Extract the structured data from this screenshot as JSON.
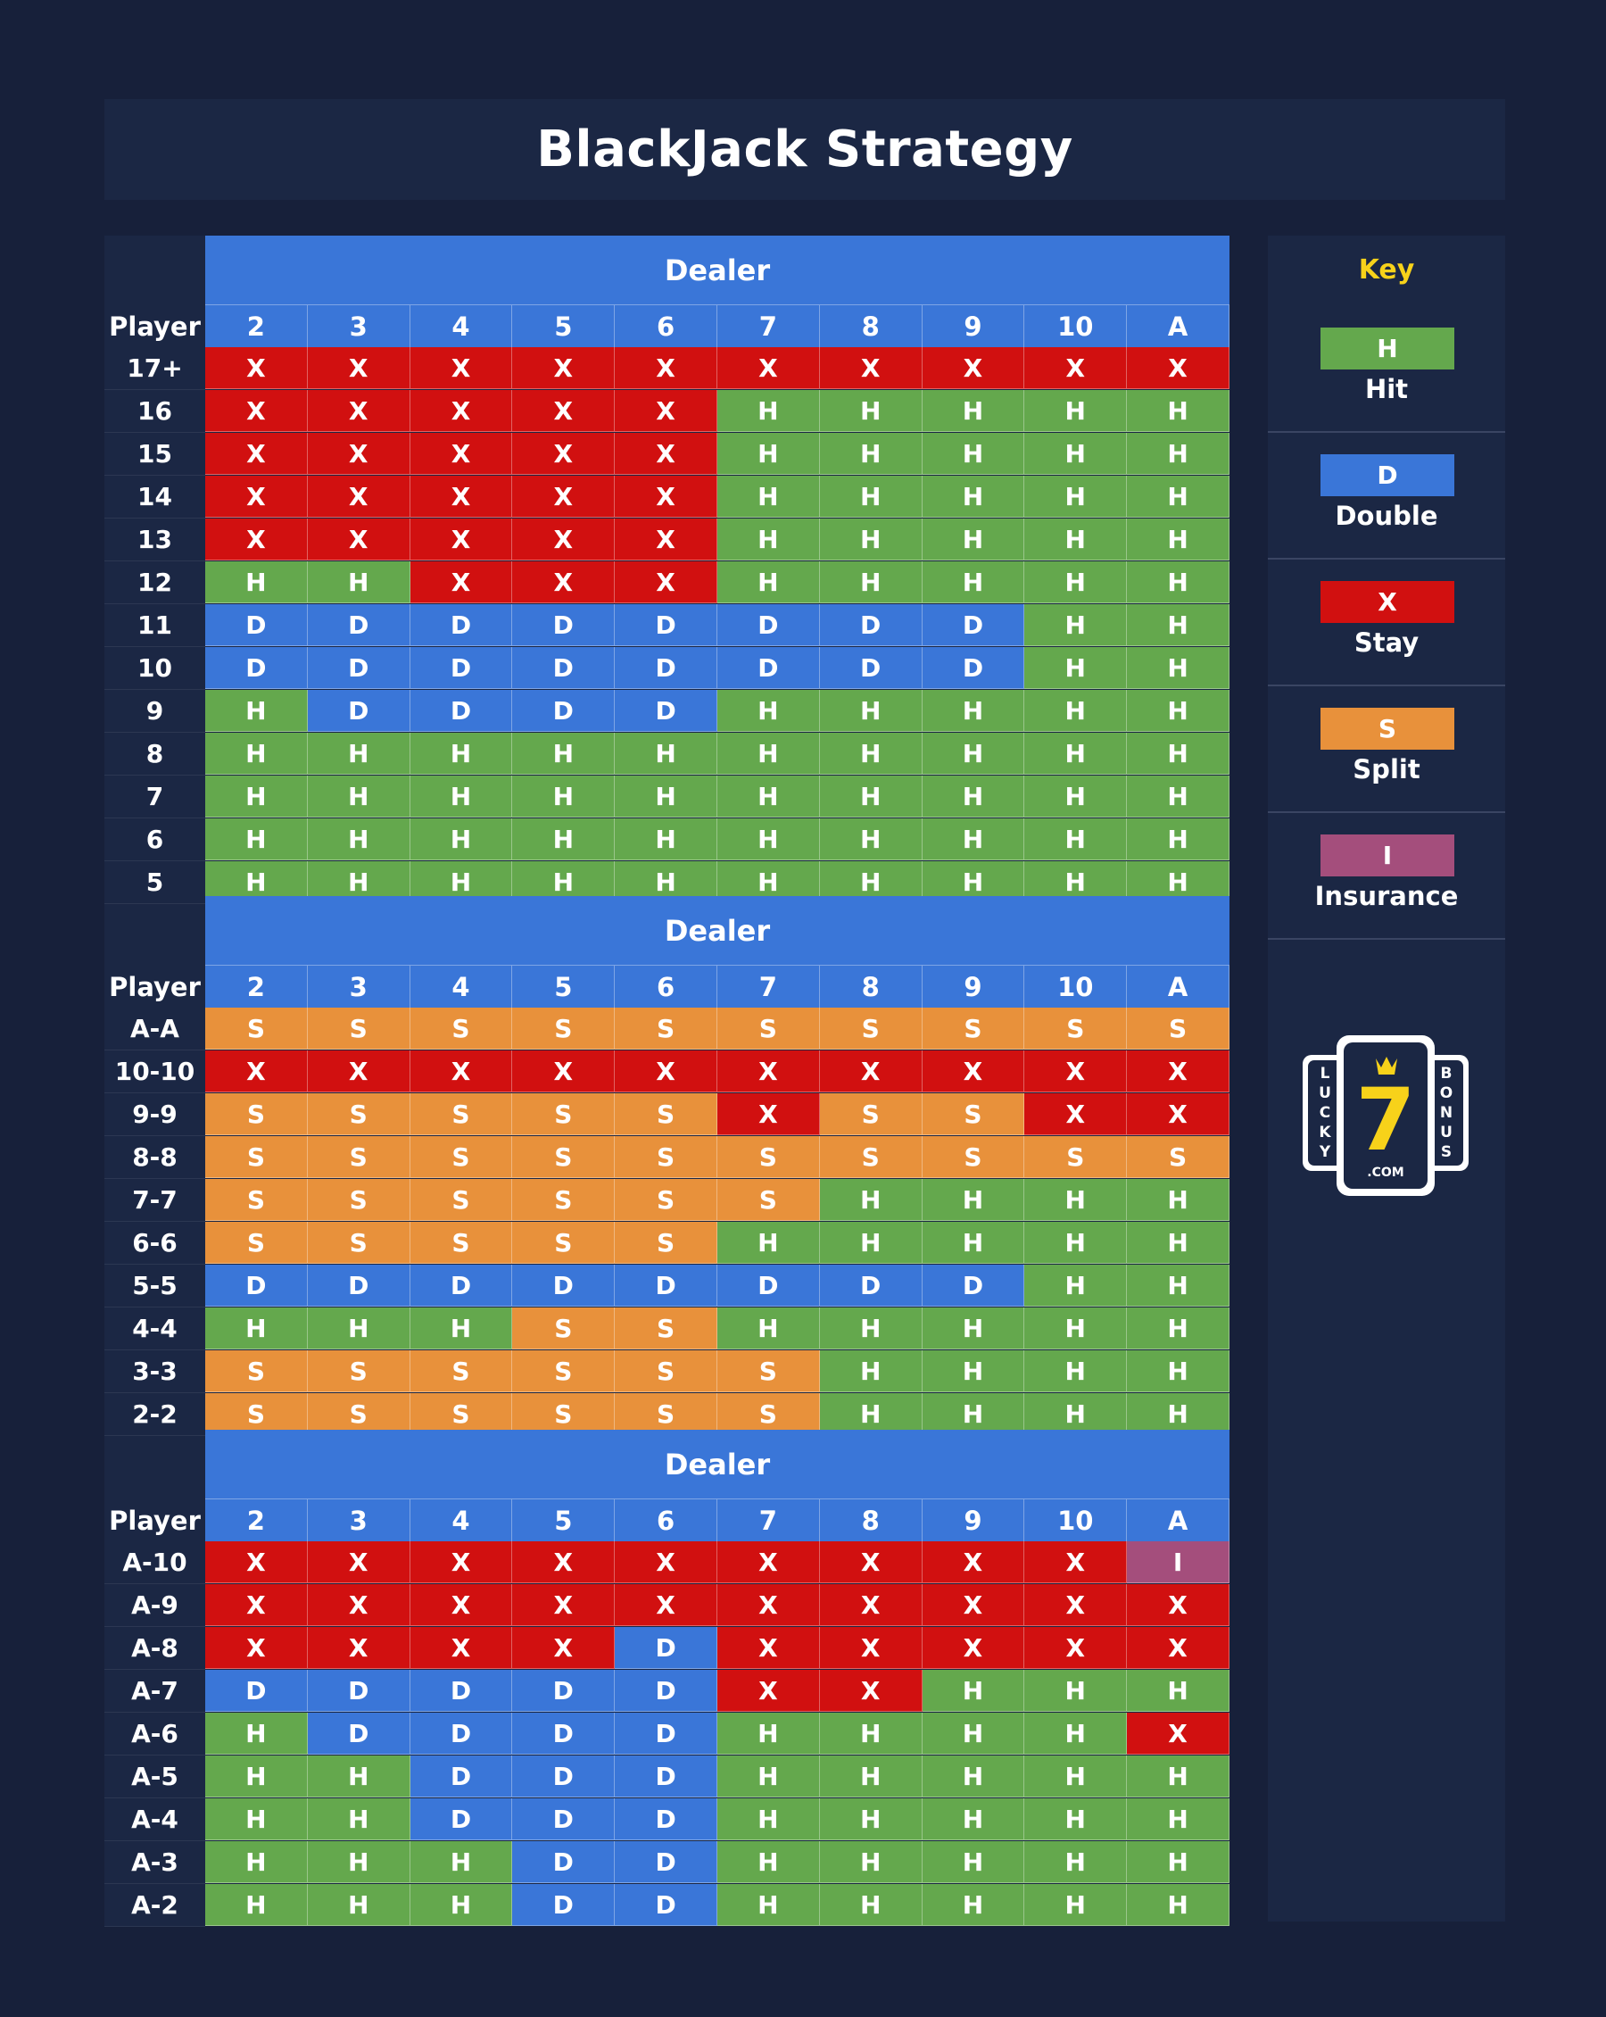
{
  "header": {
    "title": "BlackJack Strategy"
  },
  "colors": {
    "H": "#64a84d",
    "D": "#3a76d8",
    "X": "#d11010",
    "S": "#e8913b",
    "I": "#a44e7c"
  },
  "tables": [
    {
      "dealer_label": "Dealer",
      "player_label": "Player",
      "columns": [
        "2",
        "3",
        "4",
        "5",
        "6",
        "7",
        "8",
        "9",
        "10",
        "A"
      ],
      "rows": [
        {
          "label": "17+",
          "cells": [
            "X",
            "X",
            "X",
            "X",
            "X",
            "X",
            "X",
            "X",
            "X",
            "X"
          ]
        },
        {
          "label": "16",
          "cells": [
            "X",
            "X",
            "X",
            "X",
            "X",
            "H",
            "H",
            "H",
            "H",
            "H"
          ]
        },
        {
          "label": "15",
          "cells": [
            "X",
            "X",
            "X",
            "X",
            "X",
            "H",
            "H",
            "H",
            "H",
            "H"
          ]
        },
        {
          "label": "14",
          "cells": [
            "X",
            "X",
            "X",
            "X",
            "X",
            "H",
            "H",
            "H",
            "H",
            "H"
          ]
        },
        {
          "label": "13",
          "cells": [
            "X",
            "X",
            "X",
            "X",
            "X",
            "H",
            "H",
            "H",
            "H",
            "H"
          ]
        },
        {
          "label": "12",
          "cells": [
            "H",
            "H",
            "X",
            "X",
            "X",
            "H",
            "H",
            "H",
            "H",
            "H"
          ]
        },
        {
          "label": "11",
          "cells": [
            "D",
            "D",
            "D",
            "D",
            "D",
            "D",
            "D",
            "D",
            "H",
            "H"
          ]
        },
        {
          "label": "10",
          "cells": [
            "D",
            "D",
            "D",
            "D",
            "D",
            "D",
            "D",
            "D",
            "H",
            "H"
          ]
        },
        {
          "label": "9",
          "cells": [
            "H",
            "D",
            "D",
            "D",
            "D",
            "H",
            "H",
            "H",
            "H",
            "H"
          ]
        },
        {
          "label": "8",
          "cells": [
            "H",
            "H",
            "H",
            "H",
            "H",
            "H",
            "H",
            "H",
            "H",
            "H"
          ]
        },
        {
          "label": "7",
          "cells": [
            "H",
            "H",
            "H",
            "H",
            "H",
            "H",
            "H",
            "H",
            "H",
            "H"
          ]
        },
        {
          "label": "6",
          "cells": [
            "H",
            "H",
            "H",
            "H",
            "H",
            "H",
            "H",
            "H",
            "H",
            "H"
          ]
        },
        {
          "label": "5",
          "cells": [
            "H",
            "H",
            "H",
            "H",
            "H",
            "H",
            "H",
            "H",
            "H",
            "H"
          ]
        }
      ]
    },
    {
      "dealer_label": "Dealer",
      "player_label": "Player",
      "columns": [
        "2",
        "3",
        "4",
        "5",
        "6",
        "7",
        "8",
        "9",
        "10",
        "A"
      ],
      "rows": [
        {
          "label": "A-A",
          "cells": [
            "S",
            "S",
            "S",
            "S",
            "S",
            "S",
            "S",
            "S",
            "S",
            "S"
          ]
        },
        {
          "label": "10-10",
          "cells": [
            "X",
            "X",
            "X",
            "X",
            "X",
            "X",
            "X",
            "X",
            "X",
            "X"
          ]
        },
        {
          "label": "9-9",
          "cells": [
            "S",
            "S",
            "S",
            "S",
            "S",
            "X",
            "S",
            "S",
            "X",
            "X"
          ]
        },
        {
          "label": "8-8",
          "cells": [
            "S",
            "S",
            "S",
            "S",
            "S",
            "S",
            "S",
            "S",
            "S",
            "S"
          ]
        },
        {
          "label": "7-7",
          "cells": [
            "S",
            "S",
            "S",
            "S",
            "S",
            "S",
            "H",
            "H",
            "H",
            "H"
          ]
        },
        {
          "label": "6-6",
          "cells": [
            "S",
            "S",
            "S",
            "S",
            "S",
            "H",
            "H",
            "H",
            "H",
            "H"
          ]
        },
        {
          "label": "5-5",
          "cells": [
            "D",
            "D",
            "D",
            "D",
            "D",
            "D",
            "D",
            "D",
            "H",
            "H"
          ]
        },
        {
          "label": "4-4",
          "cells": [
            "H",
            "H",
            "H",
            "S",
            "S",
            "H",
            "H",
            "H",
            "H",
            "H"
          ]
        },
        {
          "label": "3-3",
          "cells": [
            "S",
            "S",
            "S",
            "S",
            "S",
            "S",
            "H",
            "H",
            "H",
            "H"
          ]
        },
        {
          "label": "2-2",
          "cells": [
            "S",
            "S",
            "S",
            "S",
            "S",
            "S",
            "H",
            "H",
            "H",
            "H"
          ]
        }
      ]
    },
    {
      "dealer_label": "Dealer",
      "player_label": "Player",
      "columns": [
        "2",
        "3",
        "4",
        "5",
        "6",
        "7",
        "8",
        "9",
        "10",
        "A"
      ],
      "rows": [
        {
          "label": "A-10",
          "cells": [
            "X",
            "X",
            "X",
            "X",
            "X",
            "X",
            "X",
            "X",
            "X",
            "I"
          ]
        },
        {
          "label": "A-9",
          "cells": [
            "X",
            "X",
            "X",
            "X",
            "X",
            "X",
            "X",
            "X",
            "X",
            "X"
          ]
        },
        {
          "label": "A-8",
          "cells": [
            "X",
            "X",
            "X",
            "X",
            "D",
            "X",
            "X",
            "X",
            "X",
            "X"
          ]
        },
        {
          "label": "A-7",
          "cells": [
            "D",
            "D",
            "D",
            "D",
            "D",
            "X",
            "X",
            "H",
            "H",
            "H"
          ]
        },
        {
          "label": "A-6",
          "cells": [
            "H",
            "D",
            "D",
            "D",
            "D",
            "H",
            "H",
            "H",
            "H",
            "X"
          ]
        },
        {
          "label": "A-5",
          "cells": [
            "H",
            "H",
            "D",
            "D",
            "D",
            "H",
            "H",
            "H",
            "H",
            "H"
          ]
        },
        {
          "label": "A-4",
          "cells": [
            "H",
            "H",
            "D",
            "D",
            "D",
            "H",
            "H",
            "H",
            "H",
            "H"
          ]
        },
        {
          "label": "A-3",
          "cells": [
            "H",
            "H",
            "H",
            "D",
            "D",
            "H",
            "H",
            "H",
            "H",
            "H"
          ]
        },
        {
          "label": "A-2",
          "cells": [
            "H",
            "H",
            "H",
            "D",
            "D",
            "H",
            "H",
            "H",
            "H",
            "H"
          ]
        }
      ]
    }
  ],
  "key": {
    "title": "Key",
    "items": [
      {
        "code": "H",
        "label": "Hit"
      },
      {
        "code": "D",
        "label": "Double"
      },
      {
        "code": "X",
        "label": "Stay"
      },
      {
        "code": "S",
        "label": "Split"
      },
      {
        "code": "I",
        "label": "Insurance"
      }
    ]
  },
  "logo": {
    "left": "LUCKY",
    "right": "BONUS",
    "center": "7",
    "domain": ".COM",
    "icon": "lucky7-logo-icon"
  }
}
